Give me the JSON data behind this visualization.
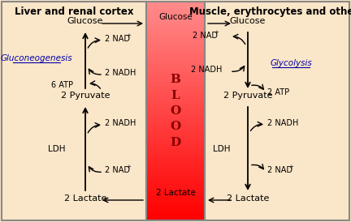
{
  "title_left": "Liver and renal cortex",
  "title_right": "Muscle, erythrocytes and others",
  "blood_label": "B\nL\nO\nO\nD",
  "panel_bg": "#FAE6C8",
  "blood_text_color": "#8B0000",
  "fig_bg": "#FAE6C8",
  "border_color": "#888888",
  "left_enzymes": [
    "Gluconeogenesis",
    "LDH"
  ],
  "right_enzymes": [
    "Glycolysis",
    "LDH"
  ],
  "enzyme_color": "#0000AA",
  "arrow_color": "#000000",
  "text_color": "#000000"
}
